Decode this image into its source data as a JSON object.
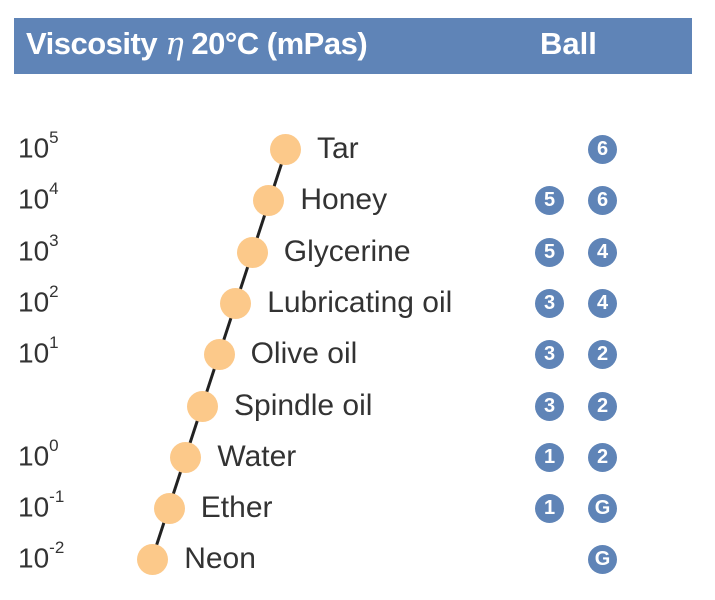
{
  "header": {
    "title_prefix": "Viscosity",
    "title_symbol": "η",
    "title_suffix": "20°C (mPas)",
    "ball_label": "Ball"
  },
  "colors": {
    "header_bg": "#5f84b7",
    "dot_fill": "#fcc98a",
    "badge_bg": "#5f84b7"
  },
  "rows": [
    {
      "exp_base": "10",
      "exp_power": "5",
      "label": "Tar",
      "ball_1": "",
      "ball_2": "6"
    },
    {
      "exp_base": "10",
      "exp_power": "4",
      "label": "Honey",
      "ball_1": "5",
      "ball_2": "6"
    },
    {
      "exp_base": "10",
      "exp_power": "3",
      "label": "Glycerine",
      "ball_1": "5",
      "ball_2": "4"
    },
    {
      "exp_base": "10",
      "exp_power": "2",
      "label": "Lubricating oil",
      "ball_1": "3",
      "ball_2": "4"
    },
    {
      "exp_base": "10",
      "exp_power": "1",
      "label": "Olive oil",
      "ball_1": "3",
      "ball_2": "2"
    },
    {
      "exp_base": "",
      "exp_power": "",
      "label": "Spindle oil",
      "ball_1": "3",
      "ball_2": "2"
    },
    {
      "exp_base": "10",
      "exp_power": "0",
      "label": "Water",
      "ball_1": "1",
      "ball_2": "2"
    },
    {
      "exp_base": "10",
      "exp_power": "-1",
      "label": "Ether",
      "ball_1": "1",
      "ball_2": "G"
    },
    {
      "exp_base": "10",
      "exp_power": "-2",
      "label": "Neon",
      "ball_1": "",
      "ball_2": "G"
    }
  ]
}
